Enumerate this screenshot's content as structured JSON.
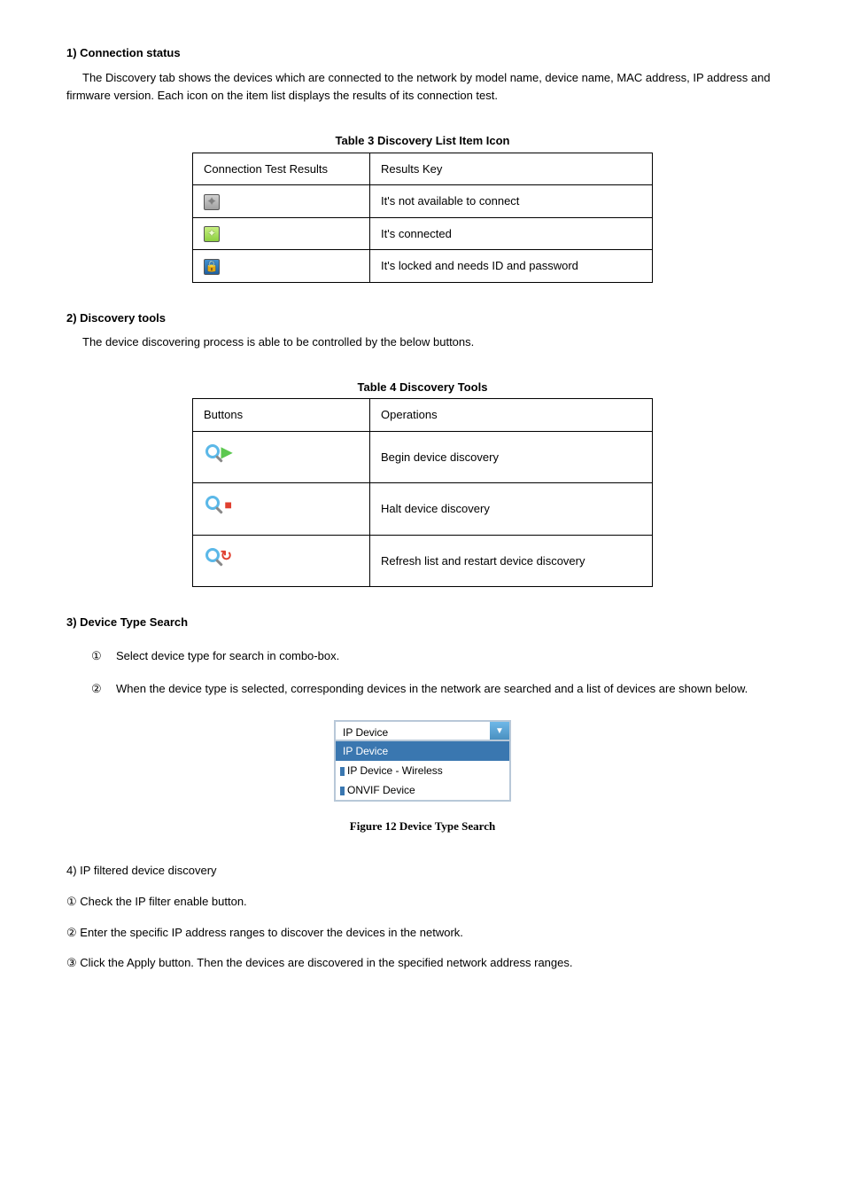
{
  "section1": {
    "heading": "1) Connection status",
    "body": "The Discovery tab shows the devices which are connected to the network by model name, device name, MAC address, IP address and firmware version. Each icon on the item list displays the results of its connection test."
  },
  "table3": {
    "caption": "Table 3 Discovery List Item Icon",
    "col1header": "Connection Test Results",
    "col2header": "Results Key",
    "rows": [
      {
        "icon_color": "grey",
        "glyph": "✦",
        "desc": "It's not available to connect"
      },
      {
        "icon_color": "green",
        "glyph": "✦",
        "desc": "It's connected"
      },
      {
        "icon_color": "blue",
        "glyph": "🔒",
        "desc": "It's locked and needs ID and password"
      }
    ]
  },
  "section2": {
    "heading": "2) Discovery tools",
    "body": "The device discovering process is able to be controlled by the below buttons."
  },
  "table4": {
    "caption": "Table 4 Discovery Tools",
    "col1header": "Buttons",
    "col2header": "Operations",
    "rows": [
      {
        "overlay": "▶",
        "overlay_class": "play",
        "desc": "Begin device discovery"
      },
      {
        "overlay": "■",
        "overlay_class": "stop",
        "desc": "Halt device discovery"
      },
      {
        "overlay": "↻",
        "overlay_class": "refresh",
        "desc": "Refresh list and restart device discovery"
      }
    ]
  },
  "section3": {
    "heading": "3) Device Type Search",
    "items": [
      {
        "marker": "①",
        "text": "Select device type for search in combo-box."
      },
      {
        "marker": "②",
        "text": "When the device type is selected, corresponding devices in the network are searched and a list of devices are shown below."
      }
    ]
  },
  "dropdown": {
    "selected_display": "IP Device",
    "options": [
      {
        "label": "IP Device",
        "selected": true
      },
      {
        "label": "IP Device - Wireless",
        "selected": false,
        "prefixed": true
      },
      {
        "label": "ONVIF Device",
        "selected": false,
        "prefixed": true
      }
    ]
  },
  "figure12": {
    "caption": "Figure 12 Device Type Search"
  },
  "section4": {
    "heading": "4) IP filtered device discovery",
    "items": [
      {
        "marker": "①",
        "text": "Check the IP filter enable button."
      },
      {
        "marker": "②",
        "text": "Enter the specific IP address ranges to discover the devices in the network."
      },
      {
        "marker": "③",
        "text": "Click the Apply button. Then the devices are discovered in the specified network address ranges."
      }
    ]
  }
}
